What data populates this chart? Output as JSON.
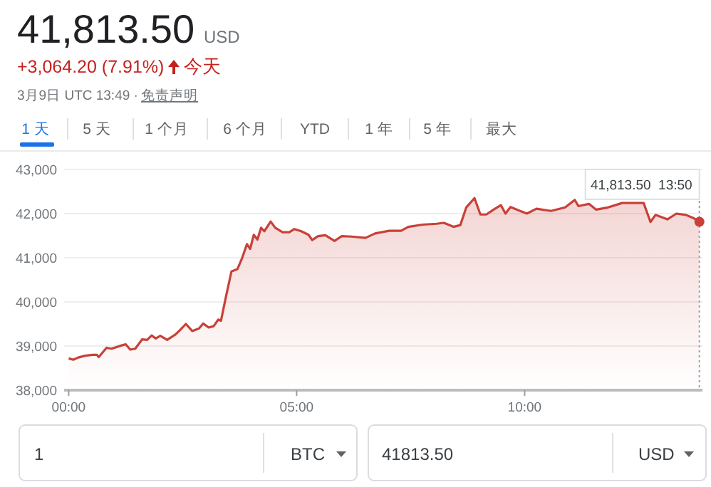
{
  "chart_data": {
    "type": "area",
    "title": "41,813.50",
    "subtitle": "+3,064.20 (7.91%)",
    "annotations": [
      "USD",
      "今天",
      "3月9日 UTC 13:49 ·",
      "免责声明",
      "1 天",
      "5 天",
      "1 个月",
      "6 个月",
      "YTD",
      "1 年",
      "5 年",
      "最大",
      "1",
      "BTC",
      "41813.50",
      "USD",
      {
        "text": "41,813.50  13:50",
        "x": 13.833,
        "y": 41813.5
      }
    ],
    "x": [
      0,
      0.1,
      0.21,
      0.36,
      0.52,
      0.62,
      0.66,
      0.83,
      0.94,
      1.15,
      1.25,
      1.35,
      1.46,
      1.61,
      1.72,
      1.82,
      1.91,
      2.01,
      2.16,
      2.34,
      2.45,
      2.57,
      2.71,
      2.86,
      2.95,
      3.07,
      3.18,
      3.28,
      3.34,
      3.44,
      3.57,
      3.7,
      3.8,
      3.91,
      3.98,
      4.06,
      4.14,
      4.22,
      4.29,
      4.43,
      4.53,
      4.69,
      4.84,
      4.95,
      5.1,
      5.26,
      5.34,
      5.47,
      5.63,
      5.83,
      5.99,
      6.2,
      6.51,
      6.72,
      7.03,
      7.29,
      7.45,
      7.76,
      8.07,
      8.23,
      8.44,
      8.59,
      8.72,
      8.9,
      9.03,
      9.16,
      9.32,
      9.48,
      9.58,
      9.69,
      9.9,
      10.05,
      10.26,
      10.58,
      10.89,
      11.1,
      11.18,
      11.41,
      11.57,
      11.83,
      12.14,
      12.51,
      12.61,
      12.76,
      12.87,
      13.13,
      13.33,
      13.54,
      13.7,
      13.833
    ],
    "series": [
      {
        "color": "#c94038",
        "values": [
          38720,
          38690,
          38740,
          38780,
          38800,
          38800,
          38750,
          38960,
          38940,
          39010,
          39040,
          38920,
          38940,
          39150,
          39140,
          39240,
          39170,
          39230,
          39140,
          39260,
          39370,
          39500,
          39340,
          39400,
          39510,
          39420,
          39450,
          39600,
          39570,
          40070,
          40690,
          40740,
          40980,
          41310,
          41200,
          41520,
          41410,
          41680,
          41600,
          41820,
          41680,
          41580,
          41580,
          41650,
          41600,
          41520,
          41400,
          41490,
          41510,
          41380,
          41490,
          41480,
          41450,
          41550,
          41610,
          41610,
          41700,
          41750,
          41770,
          41790,
          41700,
          41740,
          42140,
          42350,
          41980,
          41980,
          42090,
          42190,
          42000,
          42150,
          42060,
          42000,
          42110,
          42060,
          42140,
          42310,
          42170,
          42220,
          42090,
          42140,
          42240,
          42240,
          42240,
          41810,
          41970,
          41870,
          42000,
          41970,
          41900,
          41813.5
        ]
      }
    ],
    "xlim": [
      -0.1,
      13.9
    ],
    "xticks": [
      {
        "value": 0,
        "label": "00:00"
      },
      {
        "value": 5,
        "label": "05:00"
      },
      {
        "value": 10,
        "label": "10:00"
      }
    ],
    "ylim": [
      38000,
      43000
    ],
    "yticks": [
      {
        "value": 38000,
        "label": "38,000"
      },
      {
        "value": 39000,
        "label": "39,000"
      },
      {
        "value": 40000,
        "label": "40,000"
      },
      {
        "value": 41000,
        "label": "41,000"
      },
      {
        "value": 42000,
        "label": "42,000"
      },
      {
        "value": 43000,
        "label": "43,000"
      }
    ],
    "grid": "y",
    "ref_lines": [
      {
        "axis": "x",
        "value": 13.833,
        "color": "#9aa0a6",
        "line_style": "dotted"
      }
    ]
  }
}
